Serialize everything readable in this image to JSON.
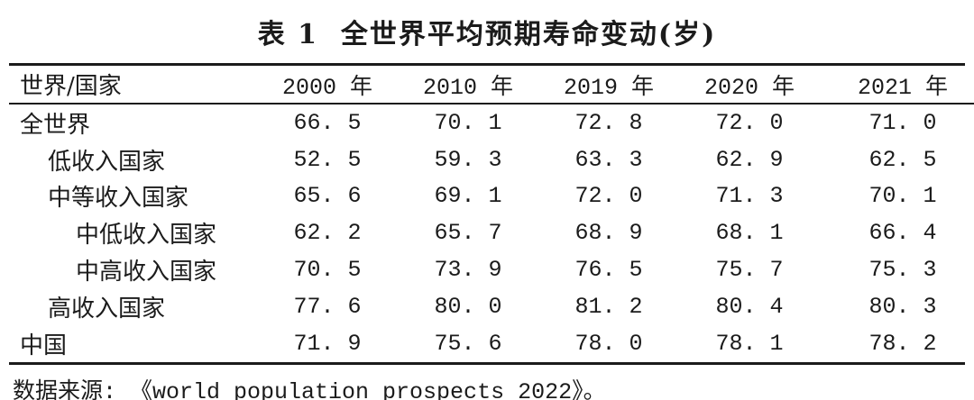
{
  "title": "表 1  全世界平均预期寿命变动(岁)",
  "source_note": "数据来源: 《world population prospects 2022》。",
  "chart_data": {
    "type": "table",
    "title": "表 1 全世界平均预期寿命变动(岁)",
    "columns": [
      "世界/国家",
      "2000 年",
      "2010 年",
      "2019 年",
      "2020 年",
      "2021 年"
    ],
    "rows": [
      {
        "label": "全世界",
        "indent": 0,
        "values": [
          66.5,
          70.1,
          72.8,
          72.0,
          71.0
        ]
      },
      {
        "label": "低收入国家",
        "indent": 1,
        "values": [
          52.5,
          59.3,
          63.3,
          62.9,
          62.5
        ]
      },
      {
        "label": "中等收入国家",
        "indent": 1,
        "values": [
          65.6,
          69.1,
          72.0,
          71.3,
          70.1
        ]
      },
      {
        "label": "中低收入国家",
        "indent": 2,
        "values": [
          62.2,
          65.7,
          68.9,
          68.1,
          66.4
        ]
      },
      {
        "label": "中高收入国家",
        "indent": 2,
        "values": [
          70.5,
          73.9,
          76.5,
          75.7,
          75.3
        ]
      },
      {
        "label": "高收入国家",
        "indent": 1,
        "values": [
          77.6,
          80.0,
          81.2,
          80.4,
          80.3
        ]
      },
      {
        "label": "中国",
        "indent": 0,
        "values": [
          71.9,
          75.6,
          78.0,
          78.1,
          78.2
        ]
      }
    ],
    "source_note": "数据来源: 《world population prospects 2022》。",
    "layout_hints": {
      "rule_style": "booktabs-three-rule",
      "value_columns_align": "center",
      "label_column_align": "left"
    }
  }
}
